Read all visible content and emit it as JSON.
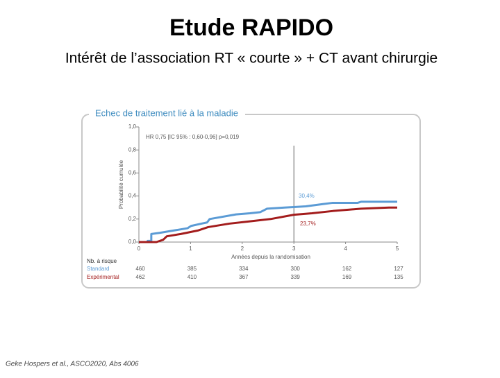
{
  "slide": {
    "title": "Etude RAPIDO",
    "subtitle": "Intérêt de l’association RT « courte » + CT avant  chirurgie",
    "footnote": "Geke Hospers et al., ASCO2020, Abs 4006"
  },
  "chart_data": {
    "type": "line",
    "title": "Echec de traitement lié à la maladie",
    "xlabel": "Années depuis la randomisation",
    "ylabel": "Probabilité cumulée",
    "xlim": [
      0,
      5
    ],
    "xticks": [
      0,
      1,
      2,
      3,
      4,
      5
    ],
    "ylim": [
      0,
      1
    ],
    "yticks": [
      {
        "value": 0,
        "label": "0,0"
      },
      {
        "value": 0.2,
        "label": "0,2"
      },
      {
        "value": 0.4,
        "label": "0,4"
      },
      {
        "value": 0.6,
        "label": "0,6"
      },
      {
        "value": 0.8,
        "label": "0,8"
      },
      {
        "value": 1,
        "label": "1,0"
      }
    ],
    "reference_x": 3,
    "annotations": [
      "HR 0,75 [IC 95% : 0,60-0,96] p=0,019",
      "30,4%",
      "23,7%"
    ],
    "series": [
      {
        "name": "Standard",
        "color": "#5b9bd5",
        "x": [
          0,
          0.17,
          0.17,
          0.24,
          0.24,
          0.4,
          0.67,
          0.94,
          1.01,
          1.21,
          1.32,
          1.37,
          1.88,
          2.15,
          2.35,
          2.48,
          2.82,
          3.0,
          3.23,
          3.56,
          3.74,
          4.23,
          4.3,
          5.0
        ],
        "values": [
          0,
          0,
          0.01,
          0.01,
          0.07,
          0.08,
          0.1,
          0.12,
          0.14,
          0.16,
          0.17,
          0.2,
          0.24,
          0.25,
          0.26,
          0.29,
          0.3,
          0.304,
          0.31,
          0.33,
          0.34,
          0.34,
          0.35,
          0.35
        ]
      },
      {
        "name": "Expérimental",
        "color": "#a31c1c",
        "x": [
          0,
          0.34,
          0.47,
          0.54,
          0.81,
          1.14,
          1.34,
          1.75,
          2.15,
          2.55,
          3.0,
          3.35,
          3.76,
          4.3,
          4.84,
          5.0
        ],
        "values": [
          0,
          0,
          0.02,
          0.05,
          0.07,
          0.1,
          0.13,
          0.16,
          0.18,
          0.2,
          0.237,
          0.25,
          0.27,
          0.29,
          0.3,
          0.3
        ]
      }
    ],
    "risk_table": {
      "title": "Nb. à risque",
      "rows": [
        {
          "name": "Standard",
          "values": [
            460,
            385,
            334,
            300,
            162,
            127
          ]
        },
        {
          "name": "Expérimental",
          "values": [
            462,
            410,
            367,
            339,
            169,
            135
          ]
        }
      ]
    }
  }
}
